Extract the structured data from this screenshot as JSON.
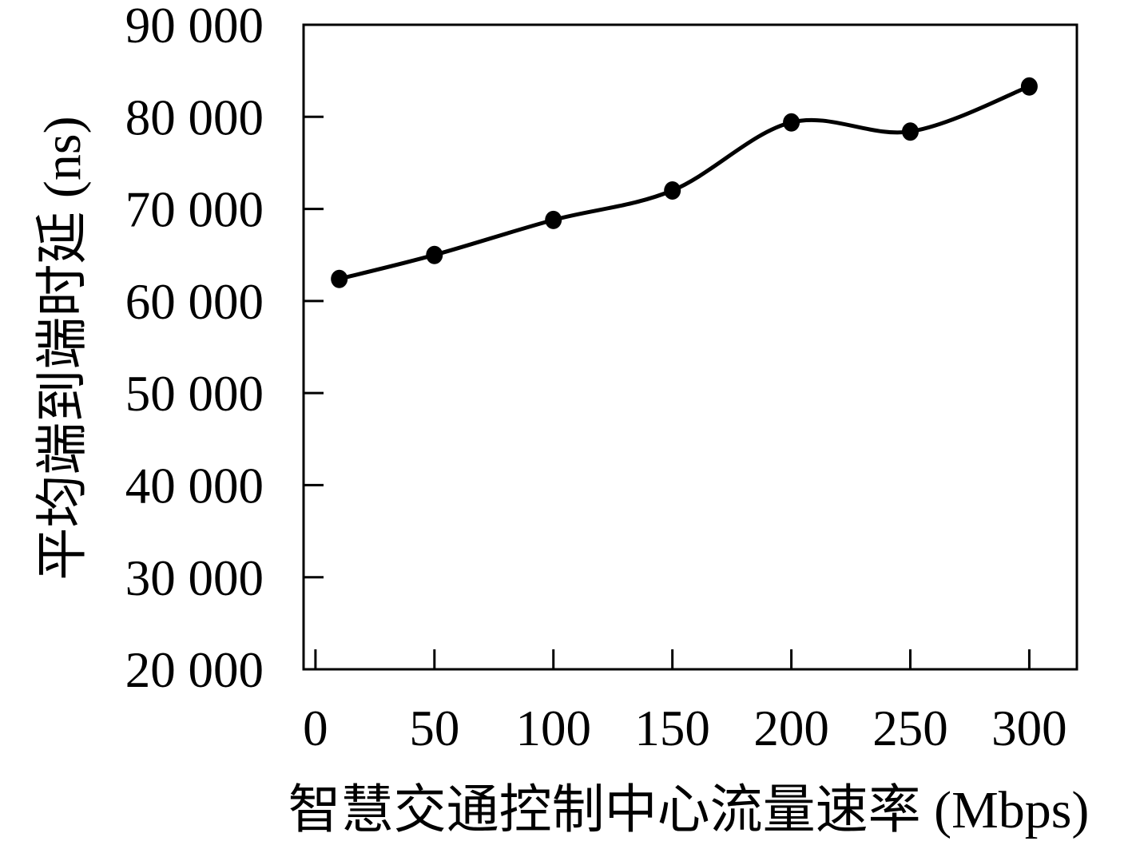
{
  "chart_data": {
    "type": "line",
    "title": "",
    "xlabel": "智慧交通控制中心流量速率 (Mbps)",
    "ylabel": "平均端到端时延 (ns)",
    "x": [
      10,
      50,
      100,
      150,
      200,
      250,
      300
    ],
    "series": [
      {
        "name": "平均端到端时延",
        "values": [
          62400,
          65000,
          68800,
          72000,
          79400,
          78400,
          83300
        ],
        "color": "#000000",
        "marker": "filled-circle",
        "smooth": true
      }
    ],
    "xlim": [
      -5,
      320
    ],
    "ylim": [
      20000,
      90000
    ],
    "x_ticks": [
      0,
      50,
      100,
      150,
      200,
      250,
      300
    ],
    "x_tick_labels": [
      "0",
      "50",
      "100",
      "150",
      "200",
      "250",
      "300"
    ],
    "y_ticks": [
      20000,
      30000,
      40000,
      50000,
      60000,
      70000,
      80000,
      90000
    ],
    "y_tick_labels": [
      "20 000",
      "30 000",
      "40 000",
      "50 000",
      "60 000",
      "70 000",
      "80 000",
      "90 000"
    ],
    "grid": false,
    "legend": "none",
    "background": "#ffffff",
    "axis_color": "#000000"
  }
}
